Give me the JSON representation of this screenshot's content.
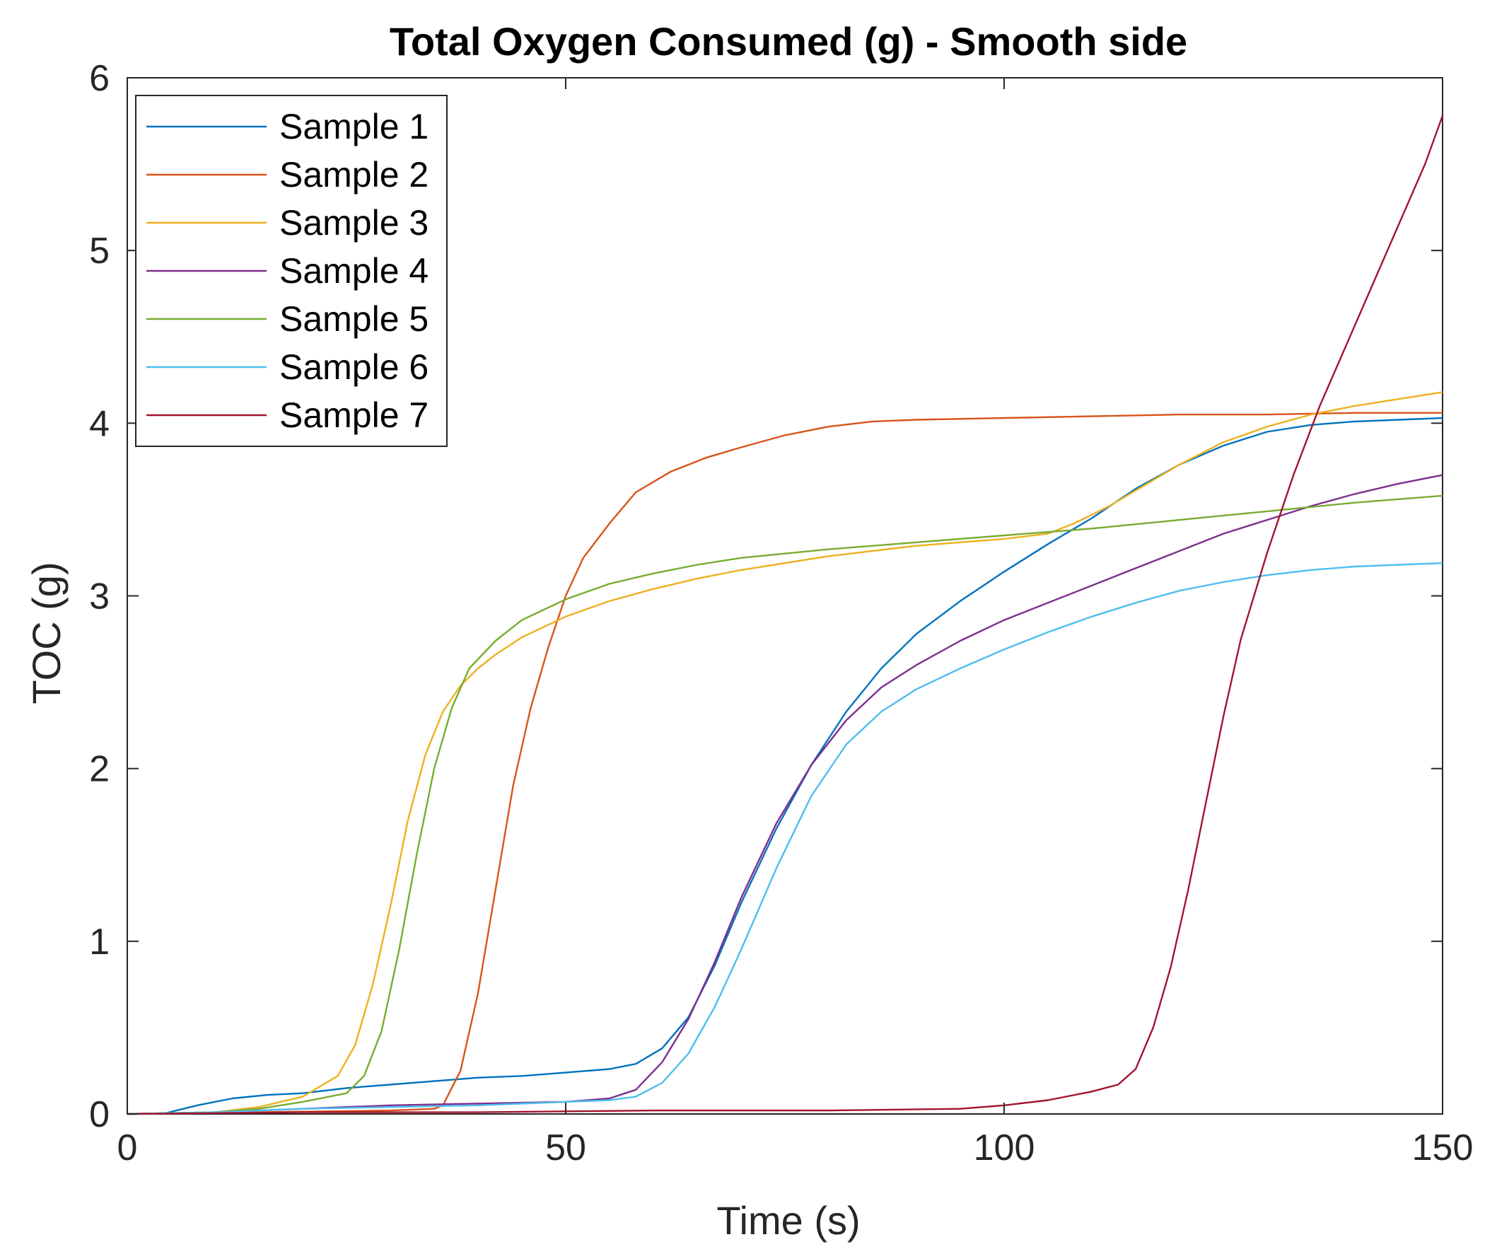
{
  "chart_data": {
    "type": "line",
    "title": "Total Oxygen Consumed (g) - Smooth side",
    "xlabel": "Time (s)",
    "ylabel": "TOC (g)",
    "xlim": [
      0,
      150
    ],
    "ylim": [
      0,
      6
    ],
    "xticks": [
      0,
      50,
      100,
      150
    ],
    "yticks": [
      0,
      1,
      2,
      3,
      4,
      5,
      6
    ],
    "xtick_labels": [
      "0",
      "50",
      "100",
      "150"
    ],
    "ytick_labels": [
      "0",
      "1",
      "2",
      "3",
      "4",
      "5",
      "6"
    ],
    "grid": false,
    "legend_position": "top-left",
    "series": [
      {
        "name": "Sample 1",
        "color": "#0072BD",
        "points": [
          [
            4,
            0
          ],
          [
            8,
            0.05
          ],
          [
            12,
            0.09
          ],
          [
            16,
            0.11
          ],
          [
            20,
            0.12
          ],
          [
            25,
            0.15
          ],
          [
            30,
            0.17
          ],
          [
            35,
            0.19
          ],
          [
            40,
            0.21
          ],
          [
            45,
            0.22
          ],
          [
            50,
            0.24
          ],
          [
            55,
            0.26
          ],
          [
            58,
            0.29
          ],
          [
            61,
            0.38
          ],
          [
            64,
            0.56
          ],
          [
            67,
            0.86
          ],
          [
            70,
            1.22
          ],
          [
            74,
            1.65
          ],
          [
            78,
            2.02
          ],
          [
            82,
            2.33
          ],
          [
            86,
            2.58
          ],
          [
            90,
            2.78
          ],
          [
            95,
            2.97
          ],
          [
            100,
            3.14
          ],
          [
            105,
            3.3
          ],
          [
            110,
            3.45
          ],
          [
            115,
            3.62
          ],
          [
            120,
            3.76
          ],
          [
            125,
            3.87
          ],
          [
            130,
            3.95
          ],
          [
            135,
            3.99
          ],
          [
            140,
            4.01
          ],
          [
            145,
            4.02
          ],
          [
            150,
            4.03
          ]
        ]
      },
      {
        "name": "Sample 2",
        "color": "#D95319",
        "points": [
          [
            0,
            0
          ],
          [
            30,
            0.02
          ],
          [
            35,
            0.03
          ],
          [
            36,
            0.05
          ],
          [
            38,
            0.25
          ],
          [
            40,
            0.7
          ],
          [
            42,
            1.3
          ],
          [
            44,
            1.9
          ],
          [
            46,
            2.35
          ],
          [
            48,
            2.7
          ],
          [
            50,
            3.0
          ],
          [
            52,
            3.22
          ],
          [
            55,
            3.42
          ],
          [
            58,
            3.6
          ],
          [
            62,
            3.72
          ],
          [
            66,
            3.8
          ],
          [
            70,
            3.86
          ],
          [
            75,
            3.93
          ],
          [
            80,
            3.98
          ],
          [
            85,
            4.01
          ],
          [
            90,
            4.02
          ],
          [
            100,
            4.03
          ],
          [
            110,
            4.04
          ],
          [
            120,
            4.05
          ],
          [
            130,
            4.05
          ],
          [
            140,
            4.06
          ],
          [
            150,
            4.06
          ]
        ]
      },
      {
        "name": "Sample 3",
        "color": "#EDB120",
        "points": [
          [
            0,
            0
          ],
          [
            10,
            0.01
          ],
          [
            15,
            0.04
          ],
          [
            20,
            0.1
          ],
          [
            24,
            0.22
          ],
          [
            26,
            0.4
          ],
          [
            28,
            0.75
          ],
          [
            30,
            1.2
          ],
          [
            32,
            1.7
          ],
          [
            34,
            2.08
          ],
          [
            36,
            2.33
          ],
          [
            38,
            2.48
          ],
          [
            40,
            2.58
          ],
          [
            42,
            2.66
          ],
          [
            45,
            2.76
          ],
          [
            50,
            2.88
          ],
          [
            55,
            2.97
          ],
          [
            60,
            3.04
          ],
          [
            65,
            3.1
          ],
          [
            70,
            3.15
          ],
          [
            80,
            3.23
          ],
          [
            90,
            3.29
          ],
          [
            100,
            3.33
          ],
          [
            105,
            3.36
          ],
          [
            108,
            3.42
          ],
          [
            112,
            3.52
          ],
          [
            116,
            3.64
          ],
          [
            120,
            3.76
          ],
          [
            125,
            3.89
          ],
          [
            130,
            3.98
          ],
          [
            135,
            4.05
          ],
          [
            140,
            4.1
          ],
          [
            145,
            4.14
          ],
          [
            150,
            4.18
          ]
        ]
      },
      {
        "name": "Sample 4",
        "color": "#7E2F8E",
        "points": [
          [
            0,
            0
          ],
          [
            10,
            0.01
          ],
          [
            20,
            0.03
          ],
          [
            30,
            0.05
          ],
          [
            40,
            0.06
          ],
          [
            50,
            0.07
          ],
          [
            55,
            0.09
          ],
          [
            58,
            0.14
          ],
          [
            61,
            0.3
          ],
          [
            64,
            0.55
          ],
          [
            67,
            0.88
          ],
          [
            70,
            1.25
          ],
          [
            74,
            1.68
          ],
          [
            78,
            2.02
          ],
          [
            82,
            2.28
          ],
          [
            86,
            2.47
          ],
          [
            90,
            2.6
          ],
          [
            95,
            2.74
          ],
          [
            100,
            2.86
          ],
          [
            105,
            2.96
          ],
          [
            110,
            3.06
          ],
          [
            115,
            3.16
          ],
          [
            120,
            3.26
          ],
          [
            125,
            3.36
          ],
          [
            130,
            3.44
          ],
          [
            135,
            3.52
          ],
          [
            140,
            3.59
          ],
          [
            145,
            3.65
          ],
          [
            150,
            3.7
          ]
        ]
      },
      {
        "name": "Sample 5",
        "color": "#77AC30",
        "points": [
          [
            0,
            0
          ],
          [
            10,
            0.01
          ],
          [
            15,
            0.03
          ],
          [
            20,
            0.07
          ],
          [
            25,
            0.12
          ],
          [
            27,
            0.22
          ],
          [
            29,
            0.48
          ],
          [
            31,
            0.95
          ],
          [
            33,
            1.5
          ],
          [
            35,
            2.0
          ],
          [
            37,
            2.35
          ],
          [
            39,
            2.58
          ],
          [
            42,
            2.74
          ],
          [
            45,
            2.86
          ],
          [
            50,
            2.98
          ],
          [
            55,
            3.07
          ],
          [
            60,
            3.13
          ],
          [
            65,
            3.18
          ],
          [
            70,
            3.22
          ],
          [
            80,
            3.27
          ],
          [
            90,
            3.31
          ],
          [
            100,
            3.35
          ],
          [
            110,
            3.39
          ],
          [
            120,
            3.44
          ],
          [
            130,
            3.49
          ],
          [
            140,
            3.54
          ],
          [
            150,
            3.58
          ]
        ]
      },
      {
        "name": "Sample 6",
        "color": "#4DBEEE",
        "points": [
          [
            0,
            0
          ],
          [
            10,
            0.01
          ],
          [
            20,
            0.03
          ],
          [
            30,
            0.04
          ],
          [
            40,
            0.05
          ],
          [
            50,
            0.07
          ],
          [
            55,
            0.08
          ],
          [
            58,
            0.1
          ],
          [
            61,
            0.18
          ],
          [
            64,
            0.35
          ],
          [
            67,
            0.62
          ],
          [
            70,
            0.95
          ],
          [
            74,
            1.42
          ],
          [
            78,
            1.84
          ],
          [
            82,
            2.14
          ],
          [
            86,
            2.33
          ],
          [
            90,
            2.46
          ],
          [
            95,
            2.58
          ],
          [
            100,
            2.69
          ],
          [
            105,
            2.79
          ],
          [
            110,
            2.88
          ],
          [
            115,
            2.96
          ],
          [
            120,
            3.03
          ],
          [
            125,
            3.08
          ],
          [
            130,
            3.12
          ],
          [
            135,
            3.15
          ],
          [
            140,
            3.17
          ],
          [
            145,
            3.18
          ],
          [
            150,
            3.19
          ]
        ]
      },
      {
        "name": "Sample 7",
        "color": "#A2142F",
        "points": [
          [
            0,
            0
          ],
          [
            20,
            0.01
          ],
          [
            40,
            0.01
          ],
          [
            60,
            0.02
          ],
          [
            80,
            0.02
          ],
          [
            95,
            0.03
          ],
          [
            100,
            0.05
          ],
          [
            105,
            0.08
          ],
          [
            110,
            0.13
          ],
          [
            113,
            0.17
          ],
          [
            115,
            0.26
          ],
          [
            117,
            0.5
          ],
          [
            119,
            0.85
          ],
          [
            121,
            1.3
          ],
          [
            123,
            1.8
          ],
          [
            125,
            2.3
          ],
          [
            127,
            2.75
          ],
          [
            130,
            3.25
          ],
          [
            133,
            3.7
          ],
          [
            136,
            4.1
          ],
          [
            139,
            4.45
          ],
          [
            142,
            4.8
          ],
          [
            145,
            5.15
          ],
          [
            148,
            5.5
          ],
          [
            150,
            5.78
          ]
        ]
      }
    ]
  }
}
